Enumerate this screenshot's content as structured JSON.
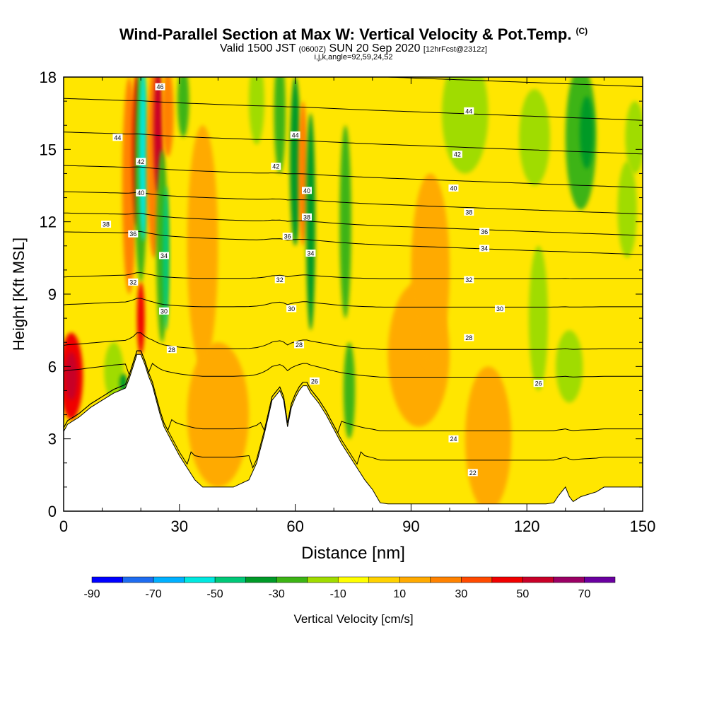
{
  "title": {
    "main": "Wind-Parallel Section at Max W: Vertical Velocity & Pot.Temp.",
    "copyright": "(C)",
    "valid_a": "Valid 1500 JST",
    "valid_zulu": "(0600Z)",
    "valid_b": "SUN 20 Sep 2020",
    "forecast": "[12hrFcst@2312z]",
    "params": "i,j,k,angle=92,59,24,52"
  },
  "chart_data": {
    "type": "heatmap",
    "xlabel": "Distance [nm]",
    "ylabel": "Height [Kft MSL]",
    "xlim": [
      0,
      150
    ],
    "ylim": [
      0,
      18
    ],
    "x_ticks": [
      0,
      30,
      60,
      90,
      120,
      150
    ],
    "y_ticks": [
      0,
      3,
      6,
      9,
      12,
      15,
      18
    ],
    "colorbar": {
      "label": "Vertical Velocity [cm/s]",
      "tick_labels": [
        -90,
        -70,
        -50,
        -30,
        -10,
        10,
        30,
        50,
        70
      ],
      "colors": [
        "#0000ff",
        "#1e6cf0",
        "#00b0ff",
        "#00e8e0",
        "#00c878",
        "#009a28",
        "#3cb414",
        "#a0dc00",
        "#ffff00",
        "#ffd200",
        "#ffaa00",
        "#ff8200",
        "#ff4a00",
        "#f00000",
        "#c80028",
        "#9a0064",
        "#6a00a0"
      ]
    },
    "terrain_profile": {
      "x": [
        0,
        1,
        4,
        7,
        10,
        13,
        16,
        17,
        18,
        19,
        20,
        21,
        22,
        23,
        24,
        25,
        26,
        28,
        30,
        32,
        34,
        36,
        38,
        40,
        44,
        48,
        50,
        52,
        54,
        56,
        57,
        58,
        59,
        60,
        61,
        62,
        63,
        64,
        66,
        68,
        70,
        72,
        74,
        76,
        78,
        80,
        82,
        84,
        90,
        100,
        110,
        120,
        125,
        127,
        128,
        129,
        130,
        131,
        132,
        134,
        138,
        140,
        142,
        146,
        150
      ],
      "y": [
        3.3,
        3.6,
        3.9,
        4.3,
        4.6,
        4.9,
        5.1,
        5.5,
        6.0,
        6.5,
        6.5,
        6.1,
        5.6,
        5.2,
        4.6,
        4.0,
        3.5,
        2.9,
        2.3,
        1.8,
        1.3,
        1.0,
        1.0,
        1.0,
        1.0,
        1.3,
        2.0,
        3.2,
        4.6,
        5.0,
        4.6,
        3.5,
        4.3,
        4.7,
        5.0,
        5.2,
        5.2,
        4.9,
        4.5,
        4.0,
        3.4,
        2.8,
        2.3,
        1.8,
        1.3,
        0.9,
        0.35,
        0.3,
        0.3,
        0.3,
        0.3,
        0.3,
        0.3,
        0.35,
        0.6,
        0.8,
        1.0,
        0.6,
        0.4,
        0.6,
        0.8,
        1.0,
        1.0,
        1.0,
        1.0
      ]
    },
    "theta_contours": [
      {
        "level": 22,
        "height": 1.6
      },
      {
        "level": 24,
        "height": 3.0
      },
      {
        "level": 26,
        "height": 5.4
      },
      {
        "level": 28,
        "height": 6.6
      },
      {
        "level": 30,
        "height": 8.4
      },
      {
        "level": 32,
        "height": 9.6
      },
      {
        "level": 34,
        "height": 10.6
      },
      {
        "level": 36,
        "height": 11.4
      },
      {
        "level": 38,
        "height": 12.3
      },
      {
        "level": 40,
        "height": 13.4
      },
      {
        "level": 42,
        "height": 14.8
      },
      {
        "level": 44,
        "height": 16.2
      },
      {
        "level": 46,
        "height": 17.6
      }
    ],
    "contour_labels": [
      {
        "text": "22",
        "x": 106,
        "y": 1.6
      },
      {
        "text": "24",
        "x": 101,
        "y": 3.0
      },
      {
        "text": "26",
        "x": 123,
        "y": 5.3
      },
      {
        "text": "26",
        "x": 65,
        "y": 5.4
      },
      {
        "text": "28",
        "x": 105,
        "y": 7.2
      },
      {
        "text": "28",
        "x": 28,
        "y": 6.7
      },
      {
        "text": "28",
        "x": 61,
        "y": 6.9
      },
      {
        "text": "30",
        "x": 113,
        "y": 8.4
      },
      {
        "text": "30",
        "x": 59,
        "y": 8.4
      },
      {
        "text": "30",
        "x": 26,
        "y": 8.3
      },
      {
        "text": "32",
        "x": 105,
        "y": 9.6
      },
      {
        "text": "32",
        "x": 56,
        "y": 9.6
      },
      {
        "text": "32",
        "x": 18,
        "y": 9.5
      },
      {
        "text": "34",
        "x": 109,
        "y": 10.9
      },
      {
        "text": "34",
        "x": 64,
        "y": 10.7
      },
      {
        "text": "34",
        "x": 26,
        "y": 10.6
      },
      {
        "text": "36",
        "x": 109,
        "y": 11.6
      },
      {
        "text": "36",
        "x": 58,
        "y": 11.4
      },
      {
        "text": "36",
        "x": 18,
        "y": 11.5
      },
      {
        "text": "38",
        "x": 105,
        "y": 12.4
      },
      {
        "text": "38",
        "x": 63,
        "y": 12.2
      },
      {
        "text": "38",
        "x": 11,
        "y": 11.9
      },
      {
        "text": "40",
        "x": 101,
        "y": 13.4
      },
      {
        "text": "40",
        "x": 63,
        "y": 13.3
      },
      {
        "text": "40",
        "x": 20,
        "y": 13.2
      },
      {
        "text": "42",
        "x": 102,
        "y": 14.8
      },
      {
        "text": "42",
        "x": 55,
        "y": 14.3
      },
      {
        "text": "42",
        "x": 20,
        "y": 14.5
      },
      {
        "text": "44",
        "x": 105,
        "y": 16.6
      },
      {
        "text": "44",
        "x": 60,
        "y": 15.6
      },
      {
        "text": "44",
        "x": 14,
        "y": 15.5
      },
      {
        "text": "46",
        "x": 25,
        "y": 17.6
      }
    ],
    "velocity_features": [
      {
        "x": 2,
        "y": 5.6,
        "w": 3.0,
        "h": 1.8,
        "value": 40
      },
      {
        "x": 2,
        "y": 5.6,
        "w": 1.6,
        "h": 1.0,
        "value": 52
      },
      {
        "x": 13,
        "y": 5.8,
        "w": 2.5,
        "h": 1.2,
        "value": -20
      },
      {
        "x": 15.5,
        "y": 5.3,
        "w": 1.0,
        "h": 0.4,
        "value": -40
      },
      {
        "x": 17,
        "y": 13.5,
        "w": 1.8,
        "h": 4.5,
        "value": 25
      },
      {
        "x": 19,
        "y": 15.0,
        "w": 1.2,
        "h": 3.2,
        "value": 45
      },
      {
        "x": 20,
        "y": 14.0,
        "w": 1.6,
        "h": 4.5,
        "value": -30
      },
      {
        "x": 20.6,
        "y": 14.8,
        "w": 1.0,
        "h": 3.6,
        "value": -55
      },
      {
        "x": 23.5,
        "y": 14.5,
        "w": 2.0,
        "h": 4.0,
        "value": 25
      },
      {
        "x": 24.5,
        "y": 15.8,
        "w": 1.2,
        "h": 2.6,
        "value": 50
      },
      {
        "x": 25.5,
        "y": 11.0,
        "w": 1.5,
        "h": 4.0,
        "value": -25
      },
      {
        "x": 26.5,
        "y": 10.5,
        "w": 0.8,
        "h": 3.0,
        "value": -45
      },
      {
        "x": 20,
        "y": 8.0,
        "w": 1.0,
        "h": 1.5,
        "value": 45
      },
      {
        "x": 27,
        "y": 16.5,
        "w": 1.5,
        "h": 1.8,
        "value": 20
      },
      {
        "x": 31,
        "y": 17.0,
        "w": 1.5,
        "h": 1.5,
        "value": -25
      },
      {
        "x": 50,
        "y": 17.0,
        "w": 2.0,
        "h": 1.8,
        "value": -20
      },
      {
        "x": 56,
        "y": 16.5,
        "w": 1.5,
        "h": 2.5,
        "value": -30
      },
      {
        "x": 60,
        "y": 14.5,
        "w": 1.4,
        "h": 3.5,
        "value": -35
      },
      {
        "x": 62,
        "y": 14.0,
        "w": 1.2,
        "h": 3.0,
        "value": 20
      },
      {
        "x": 64,
        "y": 12.0,
        "w": 1.2,
        "h": 4.5,
        "value": -40
      },
      {
        "x": 73,
        "y": 12.0,
        "w": 1.5,
        "h": 4.0,
        "value": -25
      },
      {
        "x": 74,
        "y": 5.0,
        "w": 1.5,
        "h": 2.0,
        "value": -30
      },
      {
        "x": 104,
        "y": 16.5,
        "w": 6.0,
        "h": 2.5,
        "value": -15
      },
      {
        "x": 122,
        "y": 15.5,
        "w": 4.0,
        "h": 2.0,
        "value": -20
      },
      {
        "x": 123,
        "y": 8.0,
        "w": 2.5,
        "h": 3.0,
        "value": -15
      },
      {
        "x": 131,
        "y": 6.0,
        "w": 3.5,
        "h": 1.5,
        "value": -15
      },
      {
        "x": 134,
        "y": 15.5,
        "w": 4.0,
        "h": 3.0,
        "value": -25
      },
      {
        "x": 135.5,
        "y": 15.7,
        "w": 1.8,
        "h": 1.5,
        "value": -35
      },
      {
        "x": 148,
        "y": 15.5,
        "w": 2.5,
        "h": 1.5,
        "value": -20
      },
      {
        "x": 146,
        "y": 12.5,
        "w": 2.5,
        "h": 2.0,
        "value": -15
      },
      {
        "x": 40,
        "y": 4.0,
        "w": 8.0,
        "h": 3.0,
        "value": 12
      },
      {
        "x": 92,
        "y": 6.5,
        "w": 8.0,
        "h": 3.0,
        "value": 12
      },
      {
        "x": 110,
        "y": 3.0,
        "w": 6.0,
        "h": 3.0,
        "value": 12
      },
      {
        "x": 95,
        "y": 10.0,
        "w": 5.0,
        "h": 4.0,
        "value": 12
      },
      {
        "x": 36,
        "y": 11.0,
        "w": 4.0,
        "h": 5.0,
        "value": 12
      }
    ]
  }
}
